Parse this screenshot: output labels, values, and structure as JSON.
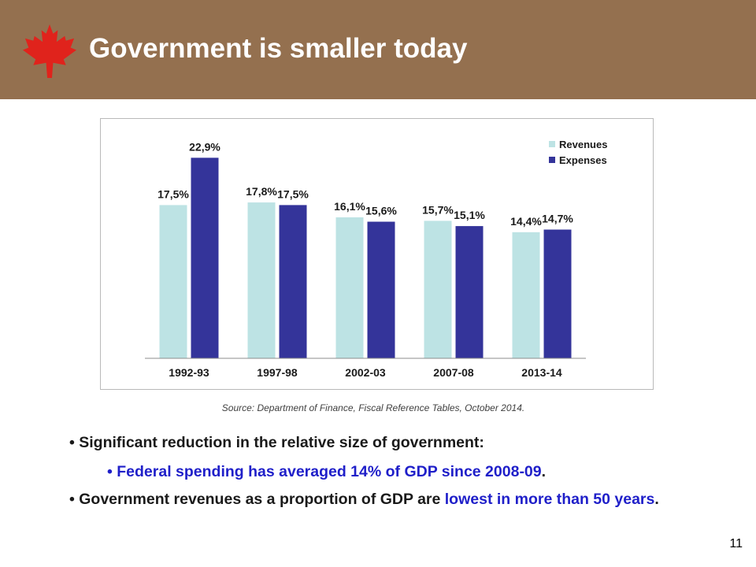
{
  "header": {
    "title": "Government is smaller today"
  },
  "colors": {
    "header_bg": "#94704f",
    "leaf": "#e0231c",
    "revenues": "#bde3e4",
    "expenses": "#34349a",
    "emphasis_blue": "#1f1fc9"
  },
  "chart_data": {
    "type": "bar",
    "categories": [
      "1992-93",
      "1997-98",
      "2002-03",
      "2007-08",
      "2013-14"
    ],
    "series": [
      {
        "name": "Revenues",
        "values": [
          17.5,
          17.8,
          16.1,
          15.7,
          14.4
        ],
        "labels": [
          "17,5%",
          "17,8%",
          "16,1%",
          "15,7%",
          "14,4%"
        ]
      },
      {
        "name": "Expenses",
        "values": [
          22.9,
          17.5,
          15.6,
          15.1,
          14.7
        ],
        "labels": [
          "22,9%",
          "17,5%",
          "15,6%",
          "15,1%",
          "14,7%"
        ]
      }
    ],
    "ylim": [
      0,
      25
    ],
    "grid": false,
    "legend": "top-right"
  },
  "source": "Source: Department of Finance, Fiscal Reference Tables, October 2014.",
  "bullets": {
    "b1": "Significant reduction in the relative size of government:",
    "b2_main": "Federal spending has averaged 14% of GDP since 2008-09",
    "b2_tail": ".",
    "b3_start": "Government revenues as a proportion of GDP are ",
    "b3_blue": "lowest in more than 50 years",
    "b3_end": "."
  },
  "page_number": "11"
}
